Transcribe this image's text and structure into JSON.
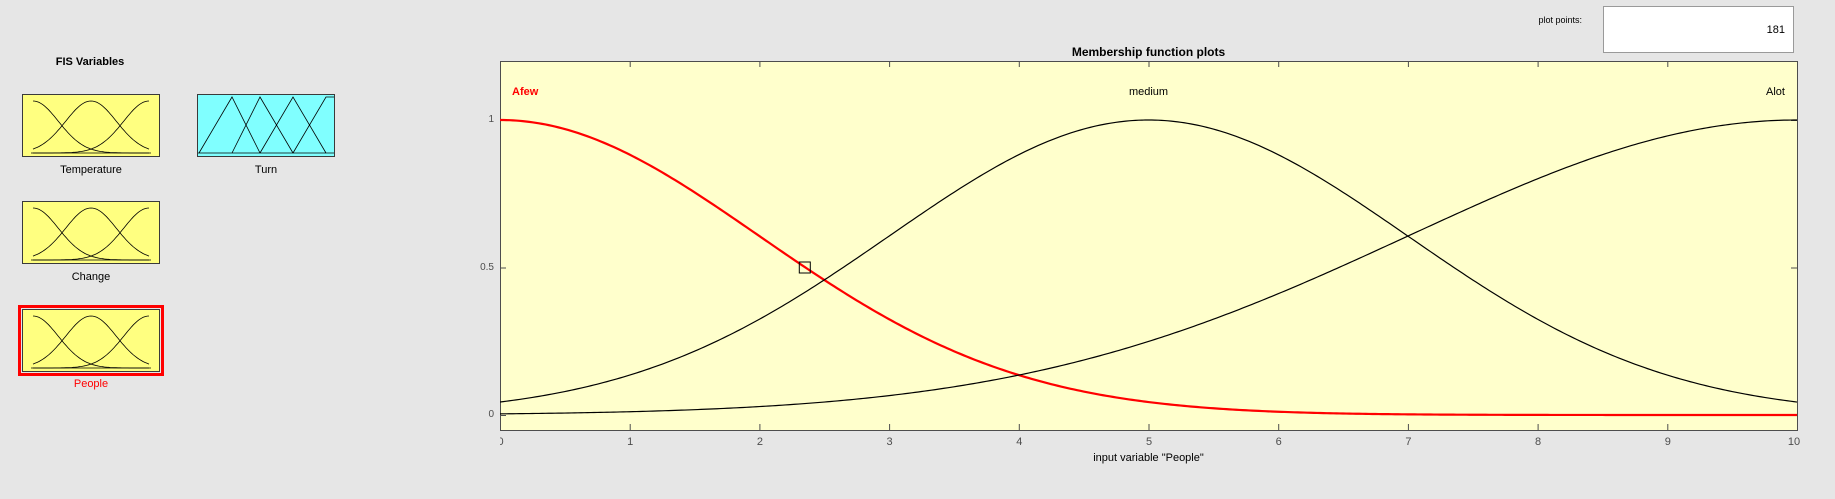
{
  "fis_panel": {
    "title": "FIS Variables",
    "variables": [
      {
        "label": "Temperature",
        "role": "input",
        "color": "#ffff80",
        "mf_shape": "gaussian",
        "selected": false
      },
      {
        "label": "Turn",
        "role": "output",
        "color": "#80ffff",
        "mf_shape": "triangular",
        "selected": false
      },
      {
        "label": "Change",
        "role": "input",
        "color": "#ffff80",
        "mf_shape": "gaussian",
        "selected": false
      },
      {
        "label": "People",
        "role": "input",
        "color": "#ffff80",
        "mf_shape": "gaussian",
        "selected": true
      }
    ],
    "selected_color": "#ff0000"
  },
  "plot_points": {
    "label": "plot points:",
    "value": "181"
  },
  "plot": {
    "title": "Membership function plots",
    "xlabel": "input variable \"People\"",
    "background": "#ffffcc",
    "highlight_color": "#ff0000"
  },
  "chart_data": {
    "type": "line",
    "title": "Membership function plots",
    "xlabel": "input variable \"People\"",
    "ylabel": "",
    "xlim": [
      0,
      10
    ],
    "ylim": [
      0,
      1
    ],
    "xticks": [
      "0",
      "1",
      "2",
      "3",
      "4",
      "5",
      "6",
      "7",
      "8",
      "9",
      "10"
    ],
    "yticks": [
      "0",
      "0.5",
      "1"
    ],
    "grid": false,
    "series": [
      {
        "name": "Afew",
        "shape": "gaussmf",
        "sigma": 2,
        "center": 0,
        "highlighted": true,
        "color": "#ff0000"
      },
      {
        "name": "medium",
        "shape": "gaussmf",
        "sigma": 2,
        "center": 5,
        "highlighted": false,
        "color": "#000000"
      },
      {
        "name": "Alot",
        "shape": "gaussmf",
        "sigma": 3,
        "center": 10,
        "highlighted": false,
        "color": "#000000"
      }
    ],
    "marker": {
      "x": 2.35,
      "y": 0.5,
      "shape": "square"
    }
  }
}
